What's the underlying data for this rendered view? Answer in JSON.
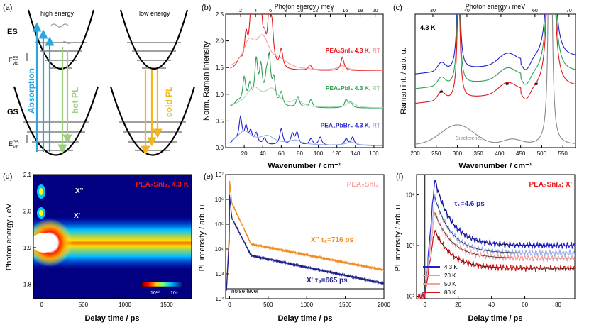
{
  "panel_labels": [
    "(a)",
    "(b)",
    "(c)",
    "(d)",
    "(e)",
    "(f)"
  ],
  "panel_a": {
    "high_title": "high energy",
    "low_title": "low energy",
    "es_label": "ES",
    "gs_label": "GS",
    "evib_es": "E",
    "evib_es_sup": "ES",
    "evib_es_sub": "vib",
    "evib_gs": "E",
    "evib_gs_sup": "GS",
    "evib_gs_sub": "vib",
    "absorption": "Absorption",
    "hot_pl": "hot PL",
    "cold_pl": "cold PL",
    "colors": {
      "absorption": "#29a8e0",
      "hot": "#9ecf7c",
      "cold": "#f2b51b",
      "relax": "#aaaaaa"
    }
  },
  "chart_data": [
    {
      "panel": "b",
      "type": "line",
      "xlabel": "Wavenumber / cm⁻¹",
      "ylabel": "Norm. Raman intensity",
      "top_axis_label": "Photon energy / meV",
      "xlim": [
        0,
        170
      ],
      "ylim": [
        0,
        2.5
      ],
      "x_ticks": [
        20,
        40,
        60,
        80,
        100,
        120,
        140,
        160
      ],
      "y_ticks": [
        0.0,
        0.5,
        1.0,
        1.5,
        2.0,
        2.5
      ],
      "top_ticks": [
        2,
        4,
        6,
        8,
        10,
        12,
        14,
        16,
        18,
        20
      ],
      "series": [
        {
          "name": "PEA₂SnI₄ 4.3 K",
          "color": "#e41a1c",
          "offset": 1.4,
          "peaks": [
            [
              15,
              0.15,
              4
            ],
            [
              22,
              0.55,
              2
            ],
            [
              27,
              0.75,
              2
            ],
            [
              31,
              0.95,
              2
            ],
            [
              34,
              0.8,
              2
            ],
            [
              38,
              0.9,
              2
            ],
            [
              42,
              0.35,
              2
            ],
            [
              47,
              0.95,
              2
            ],
            [
              50,
              0.6,
              2
            ],
            [
              60,
              0.35,
              2
            ],
            [
              91,
              0.1,
              2
            ],
            [
              126,
              0.25,
              2
            ]
          ]
        },
        {
          "name": "PEA₂SnI₄ RT",
          "color": "#f5a0a0",
          "offset": 1.4,
          "peaks": [
            [
              25,
              0.45,
              8
            ],
            [
              40,
              0.55,
              9
            ],
            [
              60,
              0.12,
              10
            ],
            [
              126,
              0.08,
              6
            ]
          ]
        },
        {
          "name": "PEA₂PbI₄ 4.3 K",
          "color": "#2e9e55",
          "offset": 0.7,
          "peaks": [
            [
              13,
              0.1,
              4
            ],
            [
              20,
              0.5,
              2
            ],
            [
              26,
              0.35,
              2
            ],
            [
              33,
              0.8,
              2
            ],
            [
              38,
              0.65,
              2
            ],
            [
              44,
              0.4,
              2
            ],
            [
              47,
              0.8,
              2
            ],
            [
              52,
              0.45,
              2
            ],
            [
              60,
              0.25,
              2
            ],
            [
              78,
              0.2,
              2
            ],
            [
              92,
              0.15,
              2
            ],
            [
              130,
              0.15,
              2
            ],
            [
              135,
              0.1,
              2
            ]
          ]
        },
        {
          "name": "PEA₂PbI₄ RT",
          "color": "#a8d8b0",
          "offset": 0.7,
          "peaks": [
            [
              30,
              0.35,
              10
            ],
            [
              50,
              0.3,
              9
            ],
            [
              77,
              0.12,
              6
            ],
            [
              135,
              0.1,
              6
            ]
          ]
        },
        {
          "name": "PEA₂PbBr₄ 4.3 K",
          "color": "#1f1fd0",
          "offset": 0.0,
          "peaks": [
            [
              10,
              0.08,
              4
            ],
            [
              16,
              0.48,
              2
            ],
            [
              22,
              0.3,
              2
            ],
            [
              27,
              0.22,
              2
            ],
            [
              33,
              0.2,
              2
            ],
            [
              42,
              0.12,
              2
            ],
            [
              60,
              0.3,
              2
            ],
            [
              72,
              0.2,
              2
            ],
            [
              77,
              0.22,
              2
            ],
            [
              92,
              0.12,
              2
            ],
            [
              102,
              0.15,
              2
            ],
            [
              130,
              0.12,
              2
            ],
            [
              137,
              0.15,
              2
            ]
          ]
        },
        {
          "name": "PEA₂PbBr₄ RT",
          "color": "#9aaee8",
          "offset": 0.0,
          "peaks": [
            [
              20,
              0.25,
              10
            ],
            [
              45,
              0.15,
              10
            ],
            [
              75,
              0.08,
              8
            ],
            [
              135,
              0.06,
              6
            ]
          ]
        }
      ],
      "legend": [
        {
          "material": "PEA₂SnI₄ 4.3 K,",
          "rt": "RT",
          "color": "#e41a1c",
          "rt_color": "#f5a0a0"
        },
        {
          "material": "PEA₂PbI₄ 4.3 K,",
          "rt": "RT",
          "color": "#2e9e55",
          "rt_color": "#a8d8b0"
        },
        {
          "material": "PEA₂PbBr₄ 4.3 K,",
          "rt": "RT",
          "color": "#1f1fd0",
          "rt_color": "#9aaee8"
        }
      ]
    },
    {
      "panel": "c",
      "type": "line",
      "xlabel": "Wavenumber / cm⁻¹",
      "ylabel": "Raman int. / arb. u.",
      "top_axis_label": "Photon energy / meV",
      "xlim": [
        200,
        580
      ],
      "x_ticks": [
        200,
        250,
        300,
        350,
        400,
        450,
        500,
        550
      ],
      "top_ticks": [
        30,
        40,
        50,
        60,
        70
      ],
      "annotation": "4.3 K",
      "si_label": "Si reference",
      "asterisk": "*",
      "asterisk_x": [
        262,
        418,
        487
      ],
      "series": [
        {
          "name": "blue",
          "color": "#1f1fd0",
          "base": 0.55
        },
        {
          "name": "green",
          "color": "#2e9e55",
          "base": 0.44
        },
        {
          "name": "red",
          "color": "#e41a1c",
          "base": 0.33
        },
        {
          "name": "Si reference",
          "color": "#888888",
          "base": 0.18
        }
      ]
    },
    {
      "panel": "d",
      "type": "heatmap",
      "xlabel": "Delay time / ps",
      "ylabel": "Photon energy / eV",
      "xlim": [
        -100,
        1800
      ],
      "ylim": [
        1.76,
        2.1
      ],
      "x_ticks": [
        0,
        500,
        1000,
        1500
      ],
      "y_ticks": [
        1.8,
        1.9,
        2.0,
        2.1
      ],
      "title": "PEA₂SnI₄, 4.3 K",
      "labels": [
        "X''",
        "X'"
      ],
      "colorbar_ticks": [
        "10¹⁰",
        "10⁹"
      ]
    },
    {
      "panel": "e",
      "type": "line",
      "xlabel": "Delay time / ps",
      "ylabel": "PL intensity / arb. u.",
      "xlim": [
        -50,
        2000
      ],
      "ylim_log10": [
        2,
        7
      ],
      "x_ticks": [
        0,
        500,
        1000,
        1500,
        2000
      ],
      "y_ticks": [
        "10²",
        "10³",
        "10⁴",
        "10⁵",
        "10⁶",
        "10⁷"
      ],
      "title": "PEA₂SnI₄",
      "noise_label": "noise level",
      "series": [
        {
          "name": "X'' τ₂=716 ps",
          "color": "#f08c1e",
          "peak": 6.75,
          "tau2": 716
        },
        {
          "name": "X' τ₂=665 ps",
          "color": "#1f1f8a",
          "peak": 6.15,
          "tau2": 665
        }
      ]
    },
    {
      "panel": "f",
      "type": "line",
      "xlabel": "Delay time / ps",
      "ylabel": "PL intensity / arb. u.",
      "xlim": [
        -5,
        90
      ],
      "ylim_log10": [
        1.95,
        4.4
      ],
      "x_ticks": [
        0,
        20,
        40,
        60,
        80
      ],
      "y_ticks": [
        "10²",
        "10³",
        "10⁴"
      ],
      "title": "PEA₂SnI₄; X'",
      "tau1_label": "τ₁=4.6 ps",
      "series": [
        {
          "name": "4.3 K",
          "color": "#1f1fd0",
          "peak": 4.3,
          "tail": 3.0
        },
        {
          "name": "20 K",
          "color": "#9aaee8",
          "peak": 3.95,
          "tail": 2.85
        },
        {
          "name": "50 K",
          "color": "#f5a0a0",
          "peak": 3.65,
          "tail": 2.75
        },
        {
          "name": "80 K",
          "color": "#d41414",
          "peak": 3.3,
          "tail": 2.55
        }
      ]
    }
  ]
}
